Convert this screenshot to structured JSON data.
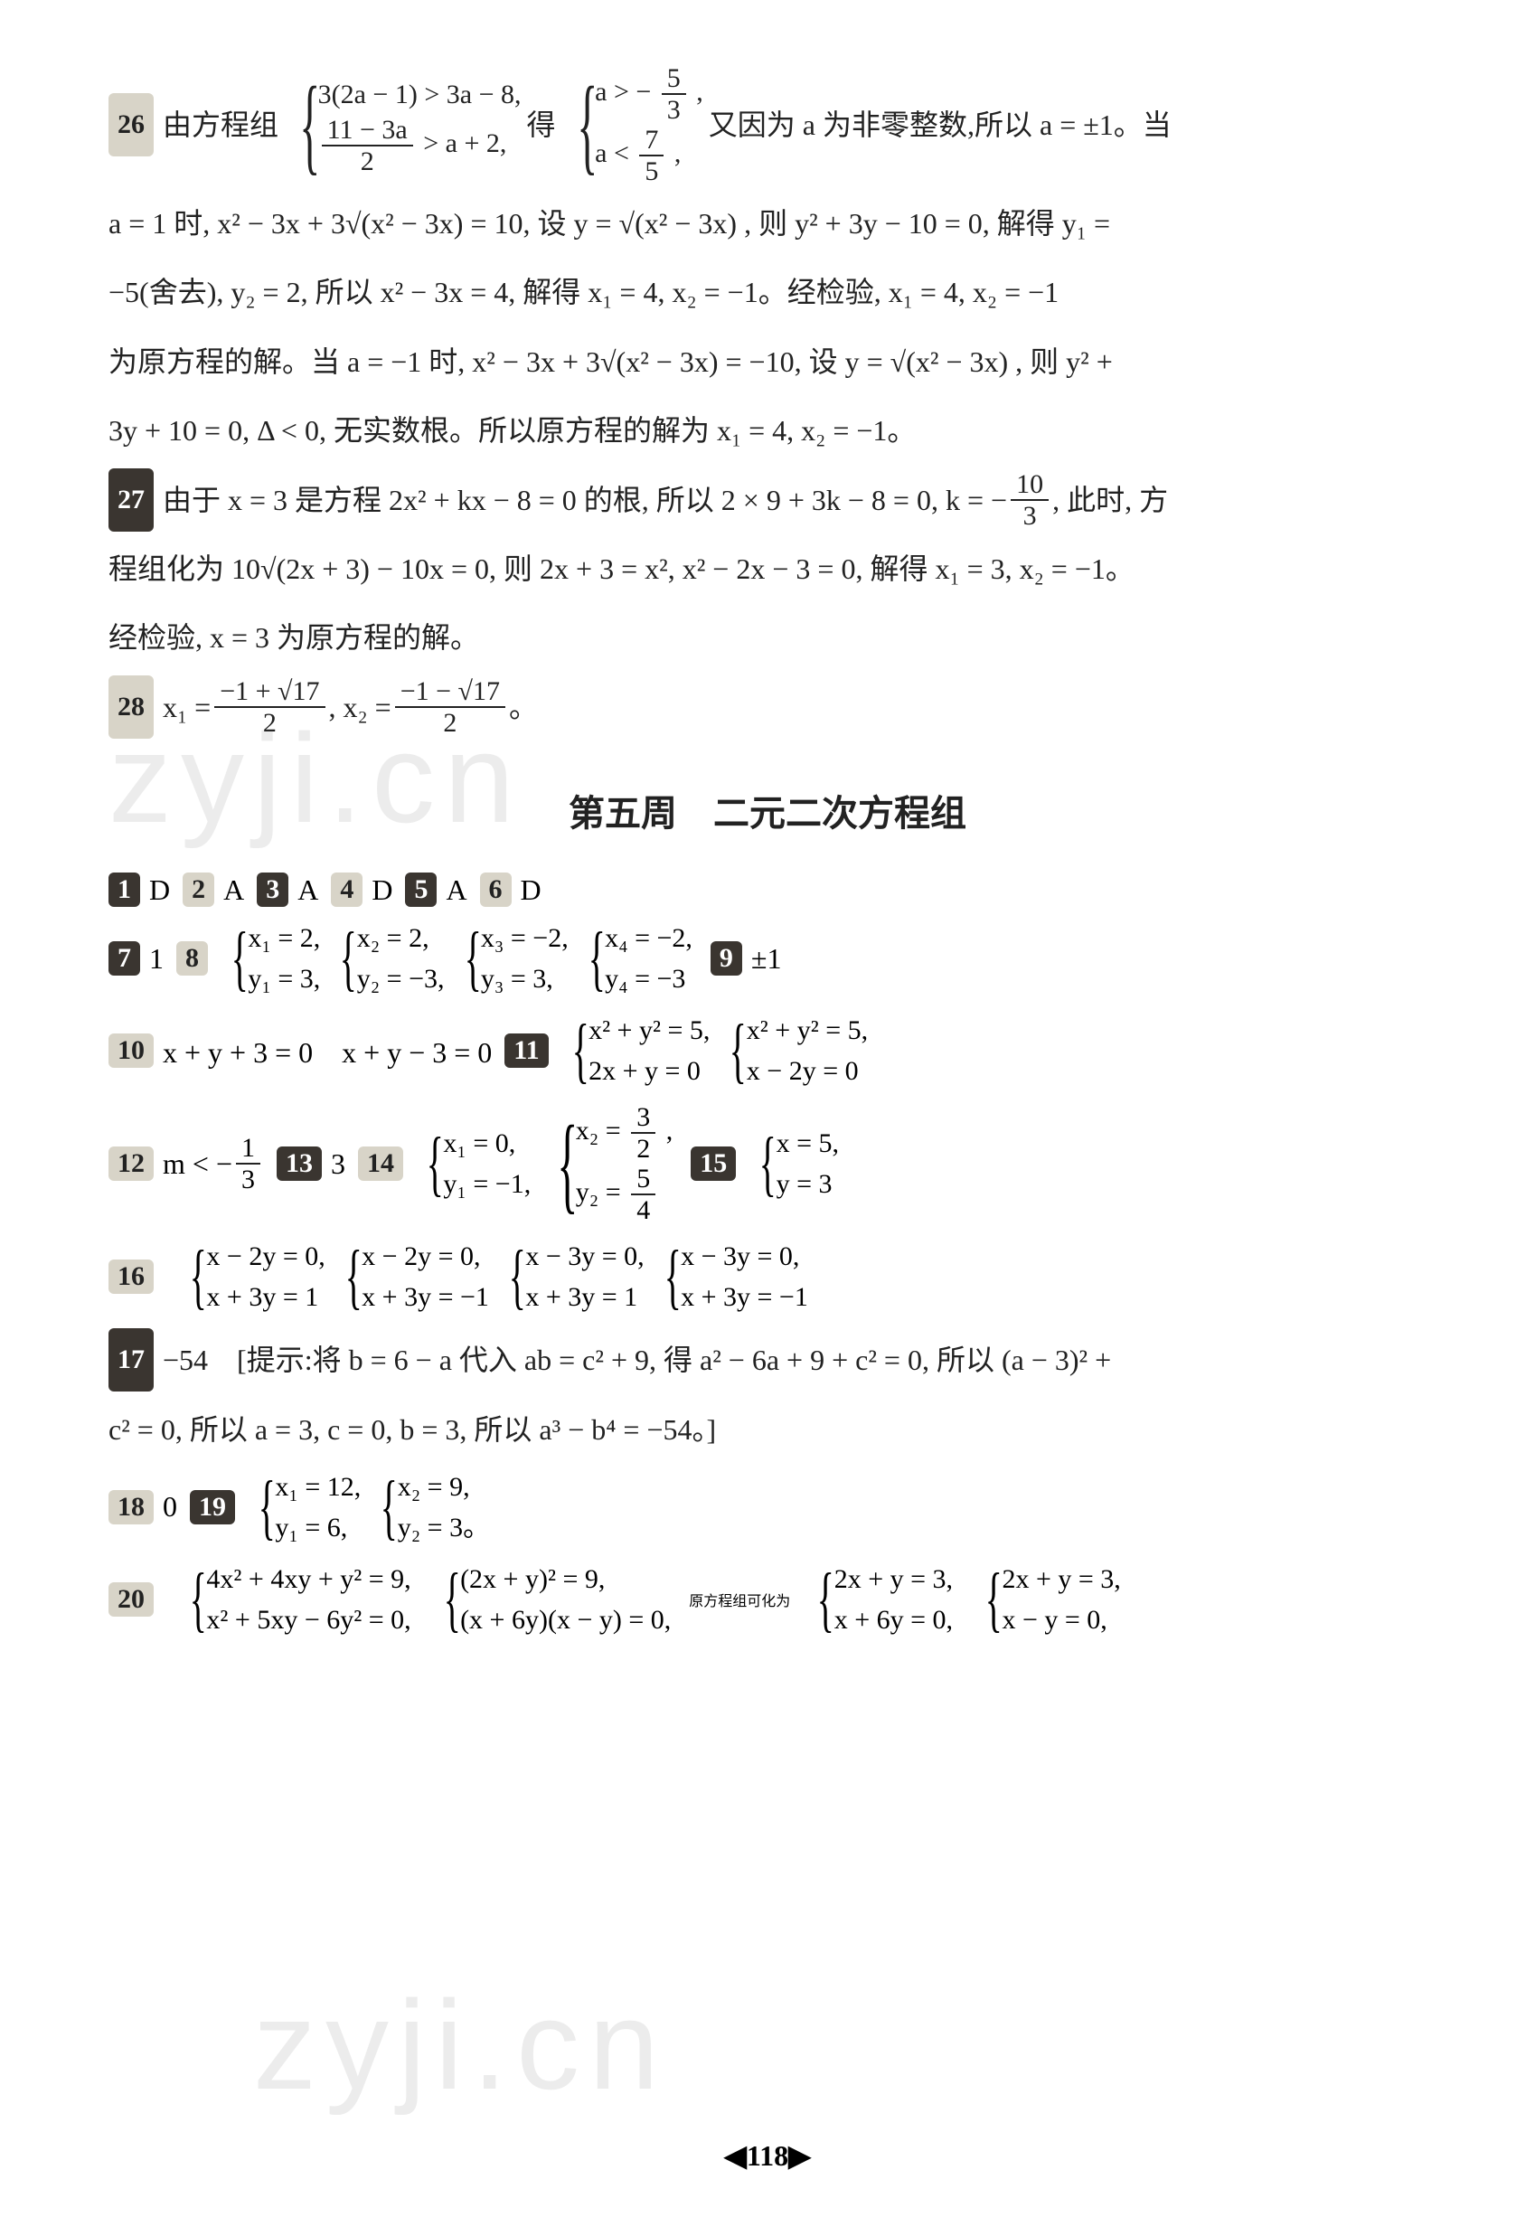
{
  "page_number": "118",
  "page_marker_left": "◀",
  "page_marker_right": "▶",
  "watermark_text": "zyji.cn",
  "section_title": "第五周　二元二次方程组",
  "q26": {
    "num": "26",
    "text_prefix": "由方程组",
    "sys1_a": "3(2a − 1) > 3a − 8,",
    "sys1_b_num": "11 − 3a",
    "sys1_b_den": "2",
    "sys1_b_tail": " > a + 2,",
    "text_mid": "得",
    "sys2_a_pre": "a > −",
    "sys2_a_num": "5",
    "sys2_a_den": "3",
    "sys2_a_tail": ",",
    "sys2_b_pre": "a < ",
    "sys2_b_num": "7",
    "sys2_b_den": "5",
    "sys2_b_tail": ",",
    "text_after": "又因为 a 为非零整数,所以 a = ±1。当",
    "line2": "a = 1 时, x² − 3x + 3√(x² − 3x) = 10, 设 y = √(x² − 3x) , 则 y² + 3y − 10 = 0, 解得 y₁ =",
    "line3": "−5(舍去), y₂ = 2, 所以 x² − 3x = 4, 解得 x₁ = 4, x₂ = −1。经检验, x₁ = 4, x₂ = −1",
    "line4": "为原方程的解。当 a = −1 时, x² − 3x + 3√(x² − 3x) = −10, 设 y = √(x² − 3x) , 则 y² +",
    "line5": "3y + 10 = 0, Δ < 0, 无实数根。所以原方程的解为 x₁ = 4, x₂ = −1。"
  },
  "q27": {
    "num": "27",
    "line1_pre": "由于 x = 3 是方程 2x² + kx − 8 = 0 的根, 所以 2 × 9 + 3k − 8 = 0, k = −",
    "frac_num": "10",
    "frac_den": "3",
    "line1_tail": ", 此时, 方",
    "line2": "程组化为 10√(2x + 3) − 10x = 0, 则 2x + 3 = x², x² − 2x − 3 = 0, 解得 x₁ = 3, x₂ = −1。",
    "line3": "经检验, x = 3 为原方程的解。"
  },
  "q28": {
    "num": "28",
    "pre": "x₁ = ",
    "f1_num": "−1 + √17",
    "f1_den": "2",
    "mid": ", x₂ = ",
    "f2_num": "−1 − √17",
    "f2_den": "2",
    "tail": "。"
  },
  "row1": [
    {
      "n": "1",
      "dark": true,
      "a": "D"
    },
    {
      "n": "2",
      "dark": false,
      "a": "A"
    },
    {
      "n": "3",
      "dark": true,
      "a": "A"
    },
    {
      "n": "4",
      "dark": false,
      "a": "D"
    },
    {
      "n": "5",
      "dark": true,
      "a": "A"
    },
    {
      "n": "6",
      "dark": false,
      "a": "D"
    }
  ],
  "q7": {
    "n": "7",
    "a": "1"
  },
  "q8": {
    "n": "8",
    "sets": [
      {
        "a": "x₁ = 2,",
        "b": "y₁ = 3,"
      },
      {
        "a": "x₂ = 2,",
        "b": "y₂ = −3,"
      },
      {
        "a": "x₃ = −2,",
        "b": "y₃ = 3,"
      },
      {
        "a": "x₄ = −2,",
        "b": "y₄ = −3"
      }
    ]
  },
  "q9": {
    "n": "9",
    "a": "±1"
  },
  "q10": {
    "n": "10",
    "a": "x + y + 3 = 0　x + y − 3 = 0"
  },
  "q11": {
    "n": "11",
    "sets": [
      {
        "a": "x² + y² = 5,",
        "b": "2x + y = 0"
      },
      {
        "a": "x² + y² = 5,",
        "b": "x − 2y = 0"
      }
    ]
  },
  "q12": {
    "n": "12",
    "pre": "m < −",
    "num": "1",
    "den": "3"
  },
  "q13": {
    "n": "13",
    "a": "3"
  },
  "q14": {
    "n": "14",
    "sets": [
      {
        "a": "x₁ = 0,",
        "b": "y₁ = −1,"
      },
      {
        "a_pre": "x₂ = ",
        "a_num": "3",
        "a_den": "2",
        "a_tail": ",",
        "b_pre": "y₂ = ",
        "b_num": "5",
        "b_den": "4"
      }
    ]
  },
  "q15": {
    "n": "15",
    "set": {
      "a": "x = 5,",
      "b": "y = 3"
    }
  },
  "q16": {
    "n": "16",
    "sets": [
      {
        "a": "x − 2y = 0,",
        "b": "x + 3y = 1"
      },
      {
        "a": "x − 2y = 0,",
        "b": "x + 3y = −1"
      },
      {
        "a": "x − 3y = 0,",
        "b": "x + 3y = 1"
      },
      {
        "a": "x − 3y = 0,",
        "b": "x + 3y = −1"
      }
    ]
  },
  "q17": {
    "n": "17",
    "line1": "−54　[提示:将 b = 6 − a 代入 ab = c² + 9, 得 a² − 6a + 9 + c² = 0, 所以 (a − 3)² +",
    "line2": "c² = 0, 所以 a = 3, c = 0, b = 3, 所以 a³ − b⁴ = −54。]"
  },
  "q18": {
    "n": "18",
    "a": "0"
  },
  "q19": {
    "n": "19",
    "sets": [
      {
        "a": "x₁ = 12,",
        "b": "y₁ = 6,"
      },
      {
        "a": "x₂ = 9,",
        "b": "y₂ = 3。"
      }
    ]
  },
  "q20": {
    "n": "20",
    "left": {
      "a": "4x² + 4xy + y² = 9,",
      "b": "x² + 5xy − 6y² = 0,"
    },
    "mid": {
      "a": "(2x + y)² = 9,",
      "b": "(x + 6y)(x − y) = 0,"
    },
    "text": "原方程组可化为",
    "right1": {
      "a": "2x + y = 3,",
      "b": "x + 6y = 0,"
    },
    "right2": {
      "a": "2x + y = 3,",
      "b": "x − y = 0,"
    }
  }
}
